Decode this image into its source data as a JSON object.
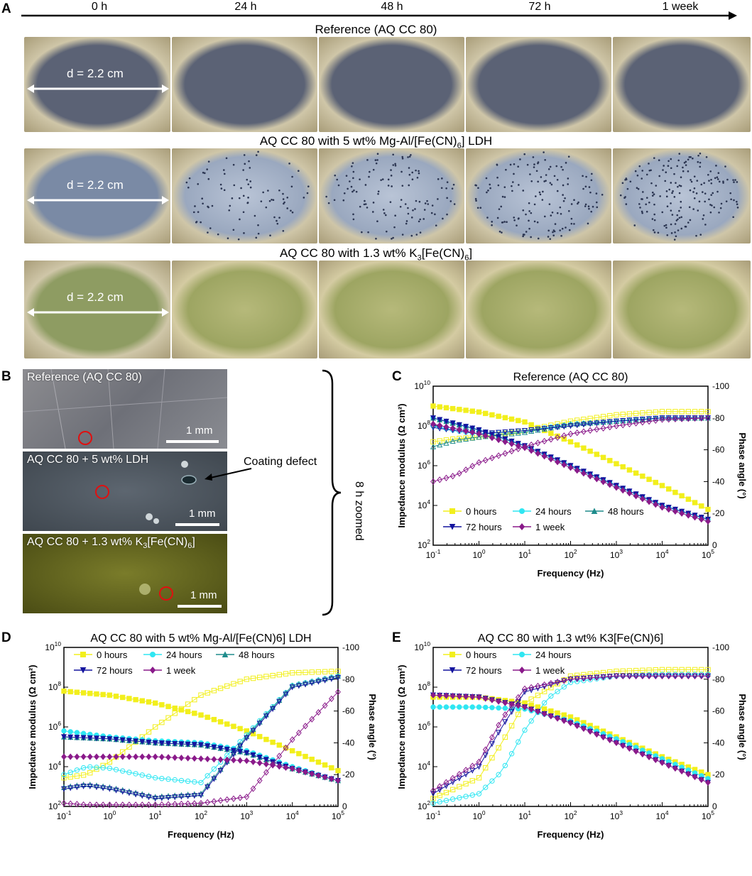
{
  "panel_a": {
    "letter": "A",
    "timepoints": [
      "0 h",
      "24 h",
      "48 h",
      "72 h",
      "1 week"
    ],
    "rows": [
      {
        "title": "Reference (AQ CC 80)",
        "diameter_label": "d = 2.2 cm",
        "tint": "#5b6275",
        "style": "plain"
      },
      {
        "title": "AQ CC 80 with 5 wt% Mg-Al/[Fe(CN)",
        "title_sub": "6",
        "title_end": "] LDH",
        "diameter_label": "d = 2.2 cm",
        "tint": "#7a8aa5",
        "style": "spotted"
      },
      {
        "title": "AQ CC 80 with 1.3  wt%  K",
        "title_sub": "3",
        "title_mid": "[Fe(CN)",
        "title_sub2": "6",
        "title_end": "]",
        "diameter_label": "d = 2.2 cm",
        "tint": "#8e9c62",
        "style": "greenish"
      }
    ]
  },
  "panel_b": {
    "letter": "B",
    "images": [
      {
        "label": "Reference (AQ CC 80)",
        "scale": "1 mm"
      },
      {
        "label": "AQ CC 80 + 5 wt% LDH",
        "scale": "1 mm"
      },
      {
        "label": "AQ CC 80 + 1.3 wt% K",
        "label_sub": "3",
        "label_end": "[Fe(CN)",
        "label_sub2": "6",
        "label_end2": "]",
        "scale": "1 mm"
      }
    ],
    "defect_label": "Coating defect",
    "zoom_label": "8 h zoomed"
  },
  "colors": {
    "0_hours": "#f2ef1c",
    "24_hours": "#2fe6f2",
    "48_hours": "#1f8c8c",
    "72_hours": "#14149e",
    "1_week": "#8a1a8a",
    "circle": "#e01010"
  },
  "chart_data": [
    {
      "panel": "C",
      "type": "line",
      "title": "Reference (AQ CC 80)",
      "xlabel": "Frequency (Hz)",
      "ylabel": "Impedance modulus (Ω cm²)",
      "y2label": "Phase angle (°)",
      "xlim_log10": [
        -1,
        5
      ],
      "ylim_log10": [
        2,
        10
      ],
      "y2lim": [
        0,
        -100
      ],
      "x_ticks": [
        "10-1",
        "100",
        "101",
        "102",
        "103",
        "104",
        "105"
      ],
      "y_ticks": [
        "102",
        "104",
        "106",
        "108",
        "1010"
      ],
      "y2_ticks": [
        "0",
        "-20",
        "-40",
        "-60",
        "-80",
        "-100"
      ],
      "legend": [
        "0 hours",
        "24 hours",
        "48 hours",
        "72 hours",
        "1 week"
      ],
      "series": [
        {
          "name": "0 hours",
          "modulus_log10": [
            [
              -1,
              9.0
            ],
            [
              0,
              8.7
            ],
            [
              1,
              8.2
            ],
            [
              2,
              7.2
            ],
            [
              3,
              6.1
            ],
            [
              4,
              5.0
            ],
            [
              5,
              3.8
            ]
          ],
          "phase": [
            [
              -1,
              -65
            ],
            [
              -0.5,
              -67
            ],
            [
              0,
              -68
            ],
            [
              1,
              -72
            ],
            [
              2,
              -78
            ],
            [
              3,
              -82
            ],
            [
              4,
              -84
            ],
            [
              5,
              -84
            ]
          ]
        },
        {
          "name": "24 hours",
          "modulus_log10": [
            [
              -1,
              8.4
            ],
            [
              0,
              7.8
            ],
            [
              1,
              7.0
            ],
            [
              2,
              6.0
            ],
            [
              3,
              5.0
            ],
            [
              4,
              4.0
            ],
            [
              5,
              3.3
            ]
          ],
          "phase": [
            [
              -1,
              -75
            ],
            [
              -0.5,
              -72
            ],
            [
              0,
              -70
            ],
            [
              1,
              -72
            ],
            [
              2,
              -76
            ],
            [
              3,
              -78
            ],
            [
              4,
              -80
            ],
            [
              5,
              -80
            ]
          ]
        },
        {
          "name": "48 hours",
          "modulus_log10": [
            [
              -1,
              8.4
            ],
            [
              0,
              7.8
            ],
            [
              1,
              7.0
            ],
            [
              2,
              6.0
            ],
            [
              3,
              5.0
            ],
            [
              4,
              4.0
            ],
            [
              5,
              3.3
            ]
          ],
          "phase": [
            [
              -1,
              -62
            ],
            [
              -0.5,
              -66
            ],
            [
              0,
              -68
            ],
            [
              1,
              -71
            ],
            [
              2,
              -76
            ],
            [
              3,
              -78
            ],
            [
              4,
              -80
            ],
            [
              5,
              -80
            ]
          ]
        },
        {
          "name": "72 hours",
          "modulus_log10": [
            [
              -1,
              8.4
            ],
            [
              0,
              7.8
            ],
            [
              1,
              7.0
            ],
            [
              2,
              6.0
            ],
            [
              3,
              5.0
            ],
            [
              4,
              4.0
            ],
            [
              5,
              3.3
            ]
          ],
          "phase": [
            [
              -1,
              -74
            ],
            [
              -0.5,
              -72
            ],
            [
              0,
              -70
            ],
            [
              1,
              -72
            ],
            [
              2,
              -75
            ],
            [
              3,
              -78
            ],
            [
              4,
              -80
            ],
            [
              5,
              -80
            ]
          ]
        },
        {
          "name": "1 week",
          "modulus_log10": [
            [
              -1,
              8.1
            ],
            [
              0,
              7.6
            ],
            [
              1,
              6.9
            ],
            [
              2,
              5.9
            ],
            [
              3,
              4.9
            ],
            [
              4,
              3.9
            ],
            [
              5,
              3.2
            ]
          ],
          "phase": [
            [
              -1,
              -40
            ],
            [
              -0.5,
              -44
            ],
            [
              0,
              -52
            ],
            [
              1,
              -62
            ],
            [
              2,
              -70
            ],
            [
              3,
              -75
            ],
            [
              4,
              -79
            ],
            [
              5,
              -80
            ]
          ]
        }
      ]
    },
    {
      "panel": "D",
      "type": "line",
      "title": "AQ CC 80 with 5 wt% Mg-Al/[Fe(CN)6] LDH",
      "xlabel": "Frequency (Hz)",
      "ylabel": "Impedance modulus (Ω cm²)",
      "y2label": "Phase angle (°)",
      "xlim_log10": [
        -1,
        5
      ],
      "ylim_log10": [
        2,
        10
      ],
      "y2lim": [
        0,
        -100
      ],
      "x_ticks": [
        "10-1",
        "100",
        "101",
        "102",
        "103",
        "104",
        "105"
      ],
      "y_ticks": [
        "102",
        "104",
        "106",
        "108",
        "1010"
      ],
      "y2_ticks": [
        "0",
        "-20",
        "-40",
        "-60",
        "-80",
        "-100"
      ],
      "legend": [
        "0 hours",
        "24 hours",
        "48 hours",
        "72 hours",
        "1 week"
      ],
      "series": [
        {
          "name": "0 hours",
          "modulus_log10": [
            [
              -1,
              7.8
            ],
            [
              0,
              7.6
            ],
            [
              1,
              7.2
            ],
            [
              2,
              6.6
            ],
            [
              3,
              5.8
            ],
            [
              4,
              4.8
            ],
            [
              5,
              3.8
            ]
          ],
          "phase": [
            [
              -1,
              -18
            ],
            [
              -0.5,
              -20
            ],
            [
              0,
              -28
            ],
            [
              1,
              -50
            ],
            [
              2,
              -70
            ],
            [
              3,
              -80
            ],
            [
              4,
              -84
            ],
            [
              5,
              -85
            ]
          ]
        },
        {
          "name": "24 hours",
          "modulus_log10": [
            [
              -1,
              5.8
            ],
            [
              0,
              5.5
            ],
            [
              1,
              5.3
            ],
            [
              2,
              5.2
            ],
            [
              3,
              4.8
            ],
            [
              4,
              4.0
            ],
            [
              5,
              3.3
            ]
          ],
          "phase": [
            [
              -1,
              -20
            ],
            [
              -0.5,
              -25
            ],
            [
              0,
              -24
            ],
            [
              1,
              -18
            ],
            [
              2,
              -15
            ],
            [
              3,
              -45
            ],
            [
              4,
              -76
            ],
            [
              5,
              -82
            ]
          ]
        },
        {
          "name": "48 hours",
          "modulus_log10": [
            [
              -1,
              5.5
            ],
            [
              0,
              5.4
            ],
            [
              1,
              5.2
            ],
            [
              2,
              5.1
            ],
            [
              3,
              4.7
            ],
            [
              4,
              3.9
            ],
            [
              5,
              3.3
            ]
          ],
          "phase": [
            [
              -1,
              -12
            ],
            [
              -0.5,
              -14
            ],
            [
              0,
              -12
            ],
            [
              1,
              -6
            ],
            [
              2,
              -8
            ],
            [
              3,
              -44
            ],
            [
              4,
              -76
            ],
            [
              5,
              -82
            ]
          ]
        },
        {
          "name": "72 hours",
          "modulus_log10": [
            [
              -1,
              5.5
            ],
            [
              0,
              5.4
            ],
            [
              1,
              5.2
            ],
            [
              2,
              5.1
            ],
            [
              3,
              4.7
            ],
            [
              4,
              3.9
            ],
            [
              5,
              3.3
            ]
          ],
          "phase": [
            [
              -1,
              -11
            ],
            [
              -0.5,
              -13
            ],
            [
              0,
              -11
            ],
            [
              1,
              -5
            ],
            [
              2,
              -7
            ],
            [
              3,
              -43
            ],
            [
              4,
              -75
            ],
            [
              5,
              -81
            ]
          ]
        },
        {
          "name": "1 week",
          "modulus_log10": [
            [
              -1,
              4.5
            ],
            [
              0,
              4.5
            ],
            [
              1,
              4.5
            ],
            [
              2,
              4.4
            ],
            [
              3,
              4.3
            ],
            [
              4,
              3.9
            ],
            [
              5,
              3.3
            ]
          ],
          "phase": [
            [
              -1,
              -2
            ],
            [
              -0.5,
              -1
            ],
            [
              0,
              -1
            ],
            [
              1,
              -1
            ],
            [
              2,
              -2
            ],
            [
              3,
              -6
            ],
            [
              4,
              -42
            ],
            [
              5,
              -72
            ]
          ]
        }
      ]
    },
    {
      "panel": "E",
      "type": "line",
      "title": "AQ CC 80 with 1.3 wt%  K3[Fe(CN)6]",
      "xlabel": "Frequency (Hz)",
      "ylabel": "Impedance modulus (Ω cm²)",
      "y2label": "Phase angle (°)",
      "xlim_log10": [
        -1,
        5
      ],
      "ylim_log10": [
        2,
        10
      ],
      "y2lim": [
        0,
        -100
      ],
      "x_ticks": [
        "10-1",
        "100",
        "101",
        "102",
        "103",
        "104",
        "105"
      ],
      "y_ticks": [
        "102",
        "104",
        "106",
        "108",
        "1010"
      ],
      "y2_ticks": [
        "0",
        "-20",
        "-40",
        "-60",
        "-80",
        "-100"
      ],
      "legend": [
        "0 hours",
        "24 hours",
        "72 hours",
        "1 week"
      ],
      "series": [
        {
          "name": "0 hours",
          "modulus_log10": [
            [
              -1,
              7.5
            ],
            [
              0,
              7.5
            ],
            [
              1,
              7.2
            ],
            [
              2,
              6.5
            ],
            [
              3,
              5.5
            ],
            [
              4,
              4.5
            ],
            [
              5,
              3.6
            ]
          ],
          "phase": [
            [
              -1,
              -5
            ],
            [
              0,
              -18
            ],
            [
              0.5,
              -40
            ],
            [
              1,
              -65
            ],
            [
              2,
              -82
            ],
            [
              3,
              -85
            ],
            [
              4,
              -86
            ],
            [
              5,
              -86
            ]
          ]
        },
        {
          "name": "24 hours",
          "modulus_log10": [
            [
              -1,
              7.0
            ],
            [
              0,
              7.0
            ],
            [
              1,
              6.9
            ],
            [
              2,
              6.3
            ],
            [
              3,
              5.4
            ],
            [
              4,
              4.4
            ],
            [
              5,
              3.4
            ]
          ],
          "phase": [
            [
              -1,
              -2
            ],
            [
              0,
              -8
            ],
            [
              0.5,
              -22
            ],
            [
              1,
              -48
            ],
            [
              1.5,
              -68
            ],
            [
              2,
              -78
            ],
            [
              3,
              -82
            ],
            [
              4,
              -83
            ],
            [
              5,
              -83
            ]
          ]
        },
        {
          "name": "72 hours",
          "modulus_log10": [
            [
              -1,
              7.6
            ],
            [
              0,
              7.5
            ],
            [
              1,
              7.0
            ],
            [
              2,
              6.2
            ],
            [
              3,
              5.2
            ],
            [
              4,
              4.2
            ],
            [
              5,
              3.2
            ]
          ],
          "phase": [
            [
              -1,
              -8
            ],
            [
              0,
              -25
            ],
            [
              0.5,
              -50
            ],
            [
              1,
              -72
            ],
            [
              2,
              -80
            ],
            [
              3,
              -82
            ],
            [
              4,
              -82
            ],
            [
              5,
              -82
            ]
          ]
        },
        {
          "name": "1 week",
          "modulus_log10": [
            [
              -1,
              7.6
            ],
            [
              0,
              7.5
            ],
            [
              1,
              7.0
            ],
            [
              2,
              6.2
            ],
            [
              3,
              5.2
            ],
            [
              4,
              4.2
            ],
            [
              5,
              3.2
            ]
          ],
          "phase": [
            [
              -1,
              -10
            ],
            [
              0,
              -28
            ],
            [
              0.5,
              -55
            ],
            [
              1,
              -74
            ],
            [
              2,
              -80
            ],
            [
              3,
              -82
            ],
            [
              4,
              -82
            ],
            [
              5,
              -82
            ]
          ]
        }
      ]
    }
  ]
}
